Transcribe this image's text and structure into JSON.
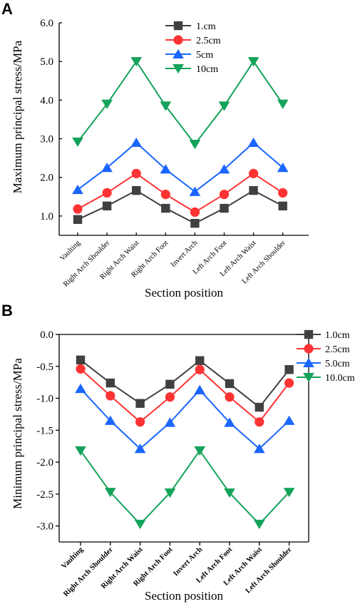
{
  "chart_data": [
    {
      "panel": "A",
      "type": "line",
      "ylabel": "Maximum principal stress/MPa",
      "xlabel": "Section position",
      "ylim": [
        0.5,
        6.0
      ],
      "yticks": [
        "1.0",
        "2.0",
        "3.0",
        "4.0",
        "5.0",
        "6.0"
      ],
      "categories": [
        "Vaulting",
        "Right Arch Shoulder",
        "Right Arch Waist",
        "Right Arch Foot",
        "Invert Arch",
        "Left Arch Foot",
        "Left Arch Waist",
        "Left Arch Shoulder"
      ],
      "legend_position": "top-center",
      "series": [
        {
          "name": "1.cm",
          "marker": "square",
          "color": "#404040",
          "values": [
            0.91,
            1.26,
            1.66,
            1.2,
            0.81,
            1.2,
            1.66,
            1.26
          ]
        },
        {
          "name": "2.5cm",
          "marker": "circle",
          "color": "#ff3333",
          "values": [
            1.18,
            1.6,
            2.1,
            1.56,
            1.1,
            1.56,
            2.1,
            1.6
          ]
        },
        {
          "name": "5cm",
          "marker": "triangle-up",
          "color": "#1a66ff",
          "values": [
            1.68,
            2.25,
            2.9,
            2.21,
            1.63,
            2.21,
            2.9,
            2.25
          ]
        },
        {
          "name": "10cm",
          "marker": "triangle-down",
          "color": "#14a35a",
          "values": [
            2.92,
            3.9,
            5.0,
            3.85,
            2.86,
            3.85,
            5.0,
            3.9
          ]
        }
      ]
    },
    {
      "panel": "B",
      "type": "line",
      "ylabel": "Minimum principal stress/MPa",
      "xlabel": "Section position",
      "ylim": [
        -3.25,
        0.0
      ],
      "yticks": [
        "0.0",
        "-0.5",
        "-1.0",
        "-1.5",
        "-2.0",
        "-2.5",
        "-3.0"
      ],
      "categories": [
        "Vaulting",
        "Right Arch Shoulder",
        "Right Arch Waist",
        "Right Arch Foot",
        "Invert Arch",
        "Left Arch Foot",
        "Left Arch Waist",
        "Left Arch Shoulder"
      ],
      "legend_position": "top-right",
      "series": [
        {
          "name": "1.0cm",
          "marker": "square",
          "color": "#404040",
          "values": [
            -0.4,
            -0.76,
            -1.08,
            -0.78,
            -0.41,
            -0.77,
            -1.14,
            -0.55
          ]
        },
        {
          "name": "2.5cm",
          "marker": "circle",
          "color": "#ff3333",
          "values": [
            -0.54,
            -0.96,
            -1.37,
            -0.98,
            -0.55,
            -0.98,
            -1.37,
            -0.76
          ]
        },
        {
          "name": "5.0cm",
          "marker": "triangle-up",
          "color": "#1a66ff",
          "values": [
            -0.85,
            -1.35,
            -1.79,
            -1.38,
            -0.87,
            -1.38,
            -1.79,
            -1.35
          ]
        },
        {
          "name": "10.0cm",
          "marker": "triangle-down",
          "color": "#14a35a",
          "values": [
            -1.82,
            -2.47,
            -2.97,
            -2.48,
            -1.82,
            -2.48,
            -2.97,
            -2.47
          ]
        }
      ]
    }
  ]
}
